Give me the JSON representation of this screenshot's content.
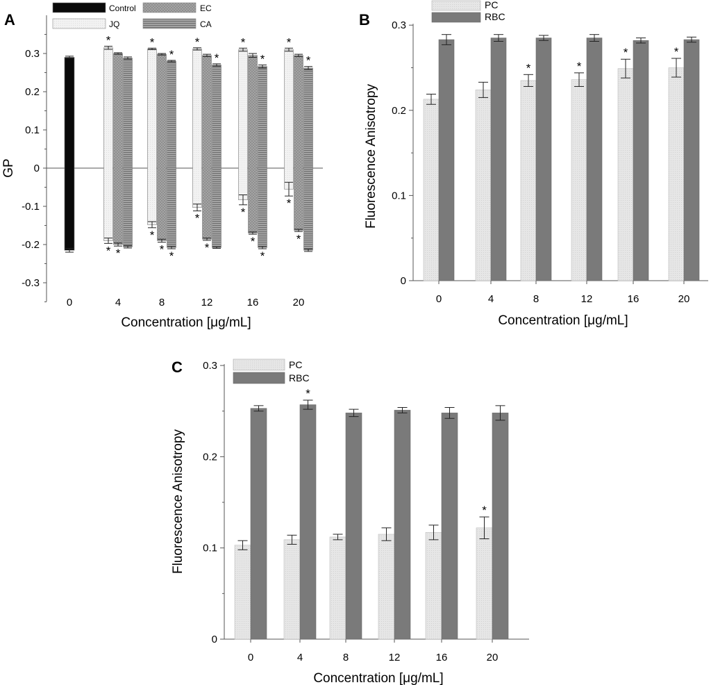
{
  "colors": {
    "control": "#0a0a0a",
    "jq": "#eeeeee",
    "ec": "#a2a2a2",
    "ca": "#8e8e8e",
    "pc": "#e0e0e0",
    "rbc": "#7a7a7a",
    "axis": "#555555"
  },
  "chart_data": [
    {
      "panel": "A",
      "type": "bar",
      "xlabel": "Concentration [μg/mL]",
      "ylabel": "GP",
      "ylim": [
        -0.35,
        0.35
      ],
      "yticks": [
        "0.3",
        "0.2",
        "0.1",
        "0",
        "-0.1",
        "-0.2",
        "-0.3"
      ],
      "categories": [
        "0",
        "4",
        "8",
        "12",
        "16",
        "20"
      ],
      "legend": [
        "Control",
        "EC",
        "JQ",
        "CA"
      ],
      "series": [
        {
          "name": "Control",
          "top": [
            0.29,
            null,
            null,
            null,
            null,
            null
          ],
          "bottom": [
            -0.215,
            null,
            null,
            null,
            null,
            null
          ],
          "err_top": [
            0.003,
            null,
            null,
            null,
            null,
            null
          ],
          "err_bottom": [
            0.005,
            null,
            null,
            null,
            null,
            null
          ]
        },
        {
          "name": "JQ",
          "top": [
            null,
            0.315,
            0.312,
            0.312,
            0.31,
            0.31
          ],
          "bottom": [
            null,
            -0.19,
            -0.148,
            -0.103,
            -0.083,
            -0.055
          ],
          "err_top": [
            null,
            0.004,
            0.002,
            0.003,
            0.004,
            0.004
          ],
          "err_bottom": [
            null,
            0.007,
            0.008,
            0.009,
            0.013,
            0.018
          ]
        },
        {
          "name": "EC",
          "top": [
            null,
            0.3,
            0.298,
            0.295,
            0.295,
            0.295
          ],
          "bottom": [
            null,
            -0.2,
            -0.19,
            -0.186,
            -0.17,
            -0.163
          ],
          "err_top": [
            null,
            0.002,
            0.002,
            0.003,
            0.005,
            0.003
          ],
          "err_bottom": [
            null,
            0.004,
            0.004,
            0.003,
            0.003,
            0.003
          ]
        },
        {
          "name": "CA",
          "top": [
            null,
            0.288,
            0.28,
            0.27,
            0.266,
            0.262
          ],
          "bottom": [
            null,
            -0.206,
            -0.208,
            -0.208,
            -0.208,
            -0.215
          ],
          "err_top": [
            null,
            0.003,
            0.002,
            0.003,
            0.004,
            0.004
          ],
          "err_bottom": [
            null,
            0.003,
            0.003,
            0.002,
            0.003,
            0.003
          ]
        }
      ],
      "significance": [
        {
          "category": "4",
          "series": "JQ",
          "pos": "top"
        },
        {
          "category": "4",
          "series": "JQ",
          "pos": "bottom"
        },
        {
          "category": "4",
          "series": "EC",
          "pos": "bottom"
        },
        {
          "category": "8",
          "series": "JQ",
          "pos": "top"
        },
        {
          "category": "8",
          "series": "CA",
          "pos": "top"
        },
        {
          "category": "8",
          "series": "JQ",
          "pos": "bottom"
        },
        {
          "category": "8",
          "series": "EC",
          "pos": "bottom"
        },
        {
          "category": "8",
          "series": "CA",
          "pos": "bottom"
        },
        {
          "category": "12",
          "series": "JQ",
          "pos": "top"
        },
        {
          "category": "12",
          "series": "CA",
          "pos": "top"
        },
        {
          "category": "12",
          "series": "JQ",
          "pos": "bottom"
        },
        {
          "category": "12",
          "series": "EC",
          "pos": "bottom"
        },
        {
          "category": "16",
          "series": "JQ",
          "pos": "top"
        },
        {
          "category": "16",
          "series": "CA",
          "pos": "top"
        },
        {
          "category": "16",
          "series": "JQ",
          "pos": "bottom"
        },
        {
          "category": "16",
          "series": "EC",
          "pos": "bottom"
        },
        {
          "category": "16",
          "series": "CA",
          "pos": "bottom"
        },
        {
          "category": "20",
          "series": "JQ",
          "pos": "top"
        },
        {
          "category": "20",
          "series": "CA",
          "pos": "top"
        },
        {
          "category": "20",
          "series": "JQ",
          "pos": "bottom"
        },
        {
          "category": "20",
          "series": "EC",
          "pos": "bottom"
        }
      ],
      "star_text": "*"
    },
    {
      "panel": "B",
      "type": "bar",
      "xlabel": "Concentration [μg/mL]",
      "ylabel": "Fluorescence Anisotropy",
      "ylim": [
        0,
        0.3
      ],
      "yticks": [
        "0.3",
        "0.2",
        "0.1",
        "0"
      ],
      "categories": [
        "0",
        "4",
        "8",
        "12",
        "16",
        "20"
      ],
      "legend": [
        "PC",
        "RBC"
      ],
      "series": [
        {
          "name": "PC",
          "values": [
            0.213,
            0.224,
            0.235,
            0.236,
            0.249,
            0.25
          ],
          "err": [
            0.006,
            0.009,
            0.007,
            0.008,
            0.011,
            0.011
          ]
        },
        {
          "name": "RBC",
          "values": [
            0.283,
            0.285,
            0.285,
            0.285,
            0.282,
            0.283
          ],
          "err": [
            0.006,
            0.004,
            0.003,
            0.004,
            0.003,
            0.003
          ]
        }
      ],
      "significance": [
        {
          "category": "8",
          "series": "PC"
        },
        {
          "category": "12",
          "series": "PC"
        },
        {
          "category": "16",
          "series": "PC"
        },
        {
          "category": "20",
          "series": "PC"
        }
      ],
      "star_text": "*"
    },
    {
      "panel": "C",
      "type": "bar",
      "xlabel": "Concentration [μg/mL]",
      "ylabel": "Fluorescence Anisotropy",
      "ylim": [
        0,
        0.3
      ],
      "yticks": [
        "0.3",
        "0.2",
        "0.1",
        "0"
      ],
      "categories": [
        "0",
        "4",
        "8",
        "12",
        "16",
        "20"
      ],
      "legend": [
        "PC",
        "RBC"
      ],
      "series": [
        {
          "name": "PC",
          "values": [
            0.103,
            0.109,
            0.112,
            0.115,
            0.117,
            0.122
          ],
          "err": [
            0.005,
            0.005,
            0.003,
            0.007,
            0.008,
            0.012
          ]
        },
        {
          "name": "RBC",
          "values": [
            0.253,
            0.257,
            0.248,
            0.251,
            0.248,
            0.248
          ],
          "err": [
            0.003,
            0.005,
            0.004,
            0.003,
            0.006,
            0.008
          ]
        }
      ],
      "significance": [
        {
          "category": "4",
          "series": "RBC"
        },
        {
          "category": "20",
          "series": "PC"
        }
      ],
      "star_text": "*"
    }
  ]
}
